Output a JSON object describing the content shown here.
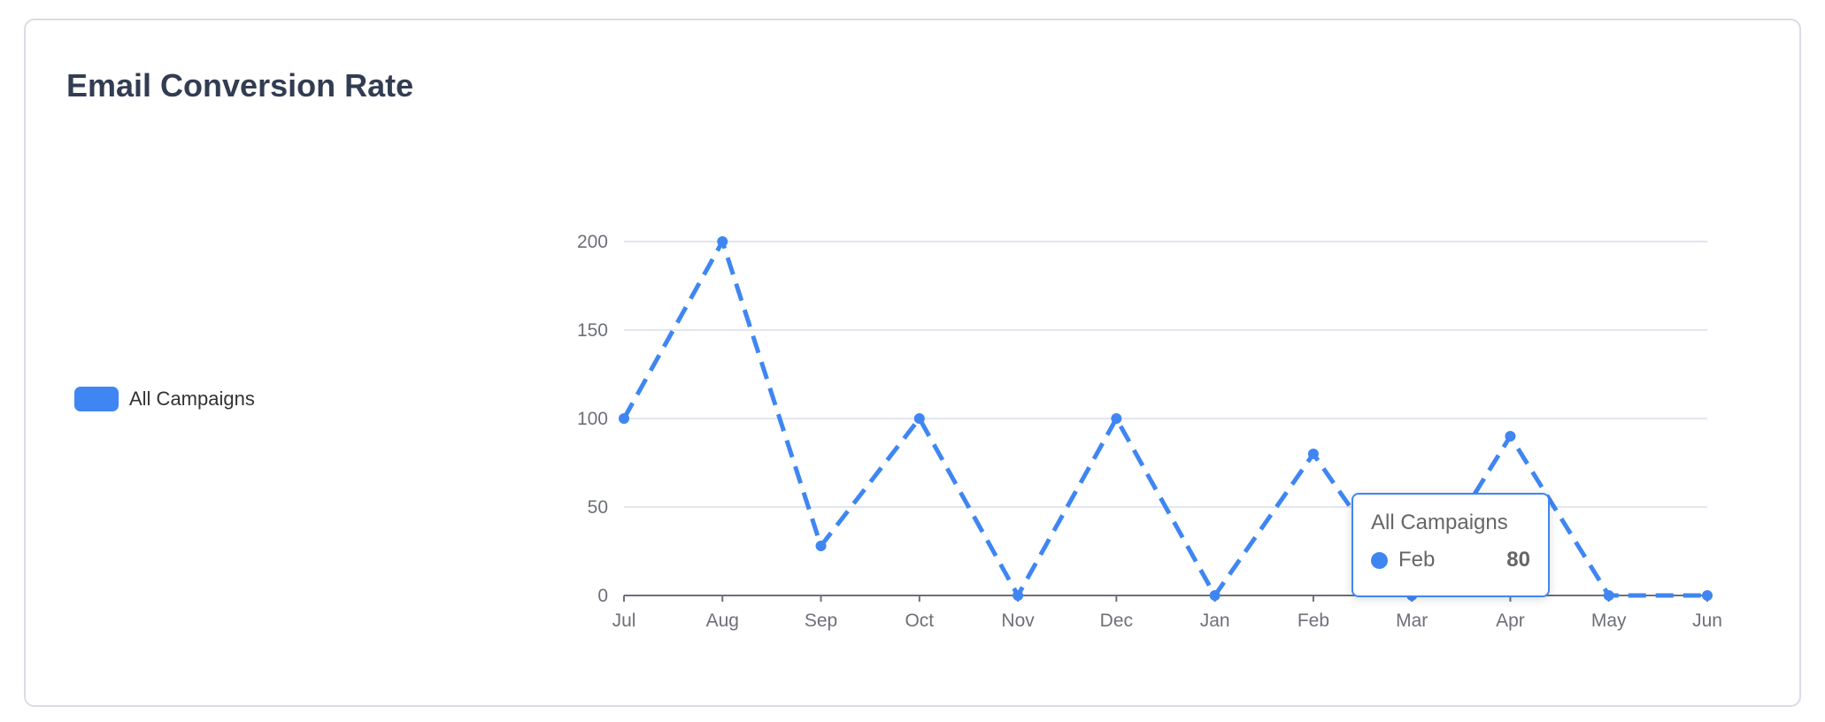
{
  "chart_data": {
    "type": "line",
    "title": "Email Conversion Rate",
    "categories": [
      "Jul",
      "Aug",
      "Sep",
      "Oct",
      "Nov",
      "Dec",
      "Jan",
      "Feb",
      "Mar",
      "Apr",
      "May",
      "Jun"
    ],
    "series": [
      {
        "name": "All Campaigns",
        "values": [
          100,
          200,
          28,
          100,
          0,
          100,
          0,
          80,
          0,
          90,
          0,
          0
        ],
        "color": "#3f86f2",
        "line_style": "dashed"
      }
    ],
    "yticks": [
      0,
      50,
      100,
      150,
      200
    ],
    "ylim": [
      0,
      200
    ],
    "xlabel": "",
    "ylabel": "",
    "grid": "horizontal",
    "legend": "left"
  },
  "tooltip": {
    "title": "All Campaigns",
    "label": "Feb",
    "value": "80"
  }
}
